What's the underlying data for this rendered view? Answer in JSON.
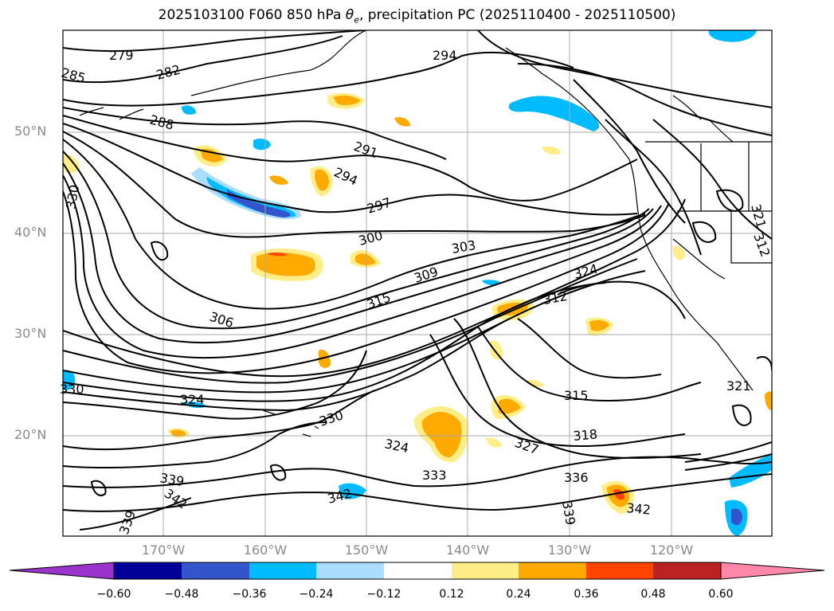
{
  "title_main": "2025103100 F060 850 hPa ",
  "title_theta": "θ",
  "title_theta_sub": "e",
  "title_rest": ", precipitation PC (2025110400 - 2025110500)",
  "lat_ticks": [
    "50°N",
    "40°N",
    "30°N",
    "20°N"
  ],
  "lon_ticks": [
    "170°W",
    "160°W",
    "150°W",
    "140°W",
    "130°W",
    "120°W"
  ],
  "contour_labels": [
    "279",
    "282",
    "285",
    "288",
    "291",
    "294",
    "294",
    "297",
    "300",
    "303",
    "306",
    "309",
    "312",
    "312",
    "315",
    "315",
    "318",
    "321",
    "321",
    "324",
    "324",
    "324",
    "327",
    "330",
    "330",
    "330",
    "333",
    "336",
    "339",
    "339",
    "339",
    "342",
    "342",
    "342"
  ],
  "colorbar": {
    "colors": [
      "#9933cc",
      "#000099",
      "#3355cc",
      "#00bbff",
      "#aaddff",
      "#ffffff",
      "#ffee88",
      "#ffaa00",
      "#ff4400",
      "#bb2222",
      "#ff88aa"
    ],
    "labels": [
      "−0.60",
      "−0.48",
      "−0.36",
      "−0.24",
      "−0.12",
      "0.12",
      "0.24",
      "0.36",
      "0.48",
      "0.60"
    ]
  },
  "shading_colors": {
    "pos_light": "#ffee88",
    "pos_mid": "#ffaa00",
    "pos_strong": "#ff4400",
    "neg_light": "#aaddff",
    "neg_mid": "#00bbff",
    "neg_strong": "#3355cc"
  }
}
